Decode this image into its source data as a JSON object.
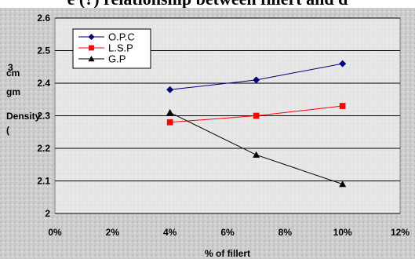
{
  "header_text": "e (?) relationship between fillert and d",
  "chart_data": {
    "type": "line",
    "xlabel": "% of fillert",
    "ylabel_lines": [
      "3",
      "cm",
      "gm",
      "Density",
      "("
    ],
    "x_ticks": [
      "0%",
      "2%",
      "4%",
      "6%",
      "8%",
      "10%",
      "12%"
    ],
    "y_ticks": [
      "2",
      "2.1",
      "2.2",
      "2.3",
      "2.4",
      "2.5",
      "2.6"
    ],
    "xlim": [
      0,
      12
    ],
    "ylim": [
      2.0,
      2.6
    ],
    "grid": "horizontal",
    "legend_position": "top-left",
    "x": [
      4,
      7,
      10
    ],
    "series": [
      {
        "name": "O.P.C",
        "values": [
          2.38,
          2.41,
          2.46
        ],
        "color": "#000080",
        "marker": "diamond"
      },
      {
        "name": "L.S.P",
        "values": [
          2.28,
          2.3,
          2.33
        ],
        "color": "#ff0000",
        "marker": "square"
      },
      {
        "name": "G.P",
        "values": [
          2.31,
          2.18,
          2.09
        ],
        "color": "#000000",
        "marker": "triangle"
      }
    ]
  },
  "colors": {
    "plot_background": "#e6e6e6",
    "chart_background": "#cfcfcf"
  }
}
